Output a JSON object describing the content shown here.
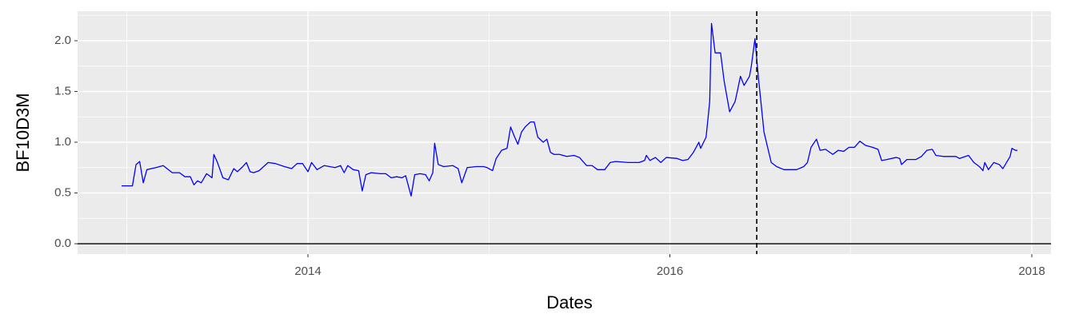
{
  "chart_data": {
    "type": "line",
    "xlabel": "Dates",
    "ylabel": "BF10D3M",
    "color": "#0000ff",
    "x": [
      2012.97,
      2013.03,
      2013.05,
      2013.07,
      2013.09,
      2013.11,
      2013.16,
      2013.2,
      2013.25,
      2013.29,
      2013.32,
      2013.35,
      2013.37,
      2013.39,
      2013.41,
      2013.44,
      2013.47,
      2013.48,
      2013.5,
      2013.53,
      2013.56,
      2013.59,
      2013.61,
      2013.64,
      2013.66,
      2013.68,
      2013.7,
      2013.73,
      2013.78,
      2013.82,
      2013.87,
      2013.91,
      2013.94,
      2013.97,
      2014.0,
      2014.02,
      2014.05,
      2014.09,
      2014.15,
      2014.18,
      2014.2,
      2014.22,
      2014.25,
      2014.28,
      2014.3,
      2014.32,
      2014.35,
      2014.4,
      2014.43,
      2014.46,
      2014.49,
      2014.52,
      2014.54,
      2014.57,
      2014.59,
      2014.62,
      2014.65,
      2014.67,
      2014.69,
      2014.7,
      2014.72,
      2014.75,
      2014.8,
      2014.83,
      2014.85,
      2014.88,
      2014.93,
      2014.97,
      2014.99,
      2015.02,
      2015.04,
      2015.07,
      2015.1,
      2015.12,
      2015.14,
      2015.16,
      2015.18,
      2015.2,
      2015.23,
      2015.25,
      2015.27,
      2015.3,
      2015.32,
      2015.34,
      2015.36,
      2015.39,
      2015.43,
      2015.47,
      2015.5,
      2015.54,
      2015.57,
      2015.6,
      2015.64,
      2015.67,
      2015.7,
      2015.77,
      2015.83,
      2015.86,
      2015.87,
      2015.89,
      2015.92,
      2015.95,
      2015.98,
      2016.04,
      2016.07,
      2016.1,
      2016.13,
      2016.16,
      2016.17,
      2016.2,
      2016.22,
      2016.23,
      2016.25,
      2016.28,
      2016.3,
      2016.33,
      2016.36,
      2016.37,
      2016.39,
      2016.41,
      2016.44,
      2016.45,
      2016.47,
      2016.49,
      2016.5,
      2016.52,
      2016.54,
      2016.56,
      2016.59,
      2016.63,
      2016.7,
      2016.74,
      2016.76,
      2016.78,
      2016.81,
      2016.83,
      2016.86,
      2016.9,
      2016.93,
      2016.96,
      2016.99,
      2017.02,
      2017.05,
      2017.08,
      2017.12,
      2017.15,
      2017.17,
      2017.2,
      2017.25,
      2017.27,
      2017.28,
      2017.31,
      2017.36,
      2017.39,
      2017.42,
      2017.45,
      2017.47,
      2017.51,
      2017.58,
      2017.6,
      2017.65,
      2017.68,
      2017.71,
      2017.73,
      2017.74,
      2017.76,
      2017.79,
      2017.82,
      2017.84,
      2017.86,
      2017.88,
      2017.89,
      2017.91,
      2017.92
    ],
    "values": [
      0.57,
      0.57,
      0.78,
      0.81,
      0.6,
      0.73,
      0.75,
      0.77,
      0.7,
      0.7,
      0.66,
      0.66,
      0.58,
      0.62,
      0.6,
      0.69,
      0.65,
      0.88,
      0.8,
      0.65,
      0.63,
      0.74,
      0.71,
      0.76,
      0.8,
      0.71,
      0.7,
      0.72,
      0.8,
      0.79,
      0.76,
      0.74,
      0.79,
      0.79,
      0.71,
      0.8,
      0.73,
      0.77,
      0.75,
      0.77,
      0.7,
      0.77,
      0.73,
      0.72,
      0.52,
      0.68,
      0.7,
      0.69,
      0.69,
      0.65,
      0.66,
      0.65,
      0.67,
      0.47,
      0.68,
      0.69,
      0.68,
      0.62,
      0.7,
      0.99,
      0.78,
      0.76,
      0.77,
      0.74,
      0.6,
      0.75,
      0.76,
      0.76,
      0.75,
      0.72,
      0.84,
      0.92,
      0.94,
      1.15,
      1.06,
      0.98,
      1.1,
      1.15,
      1.2,
      1.2,
      1.05,
      1.0,
      1.03,
      0.9,
      0.88,
      0.88,
      0.86,
      0.87,
      0.85,
      0.77,
      0.77,
      0.73,
      0.73,
      0.8,
      0.81,
      0.8,
      0.8,
      0.82,
      0.87,
      0.82,
      0.85,
      0.8,
      0.85,
      0.84,
      0.82,
      0.83,
      0.9,
      1.0,
      0.94,
      1.05,
      1.4,
      2.17,
      1.88,
      1.88,
      1.6,
      1.3,
      1.4,
      1.48,
      1.65,
      1.56,
      1.65,
      1.75,
      2.02,
      1.62,
      1.45,
      1.1,
      0.95,
      0.8,
      0.76,
      0.73,
      0.73,
      0.76,
      0.8,
      0.95,
      1.03,
      0.92,
      0.93,
      0.88,
      0.92,
      0.91,
      0.95,
      0.95,
      1.01,
      0.97,
      0.95,
      0.93,
      0.82,
      0.83,
      0.85,
      0.84,
      0.78,
      0.83,
      0.83,
      0.86,
      0.92,
      0.93,
      0.87,
      0.86,
      0.86,
      0.84,
      0.87,
      0.8,
      0.76,
      0.72,
      0.8,
      0.73,
      0.8,
      0.78,
      0.74,
      0.8,
      0.86,
      0.94,
      0.92,
      0.92
    ],
    "xlim": [
      2012.727,
      2018.106
    ],
    "xticks": [
      2014,
      2016,
      2018
    ],
    "ylim": [
      -0.102,
      2.291
    ],
    "yticks": [
      {
        "value": 0,
        "label": "0.0"
      },
      0.5,
      {
        "value": 1,
        "label": "1.0"
      },
      1.5,
      {
        "value": 2,
        "label": "2.0"
      }
    ],
    "grid": true,
    "hline": 0,
    "vline": 2016.48
  }
}
